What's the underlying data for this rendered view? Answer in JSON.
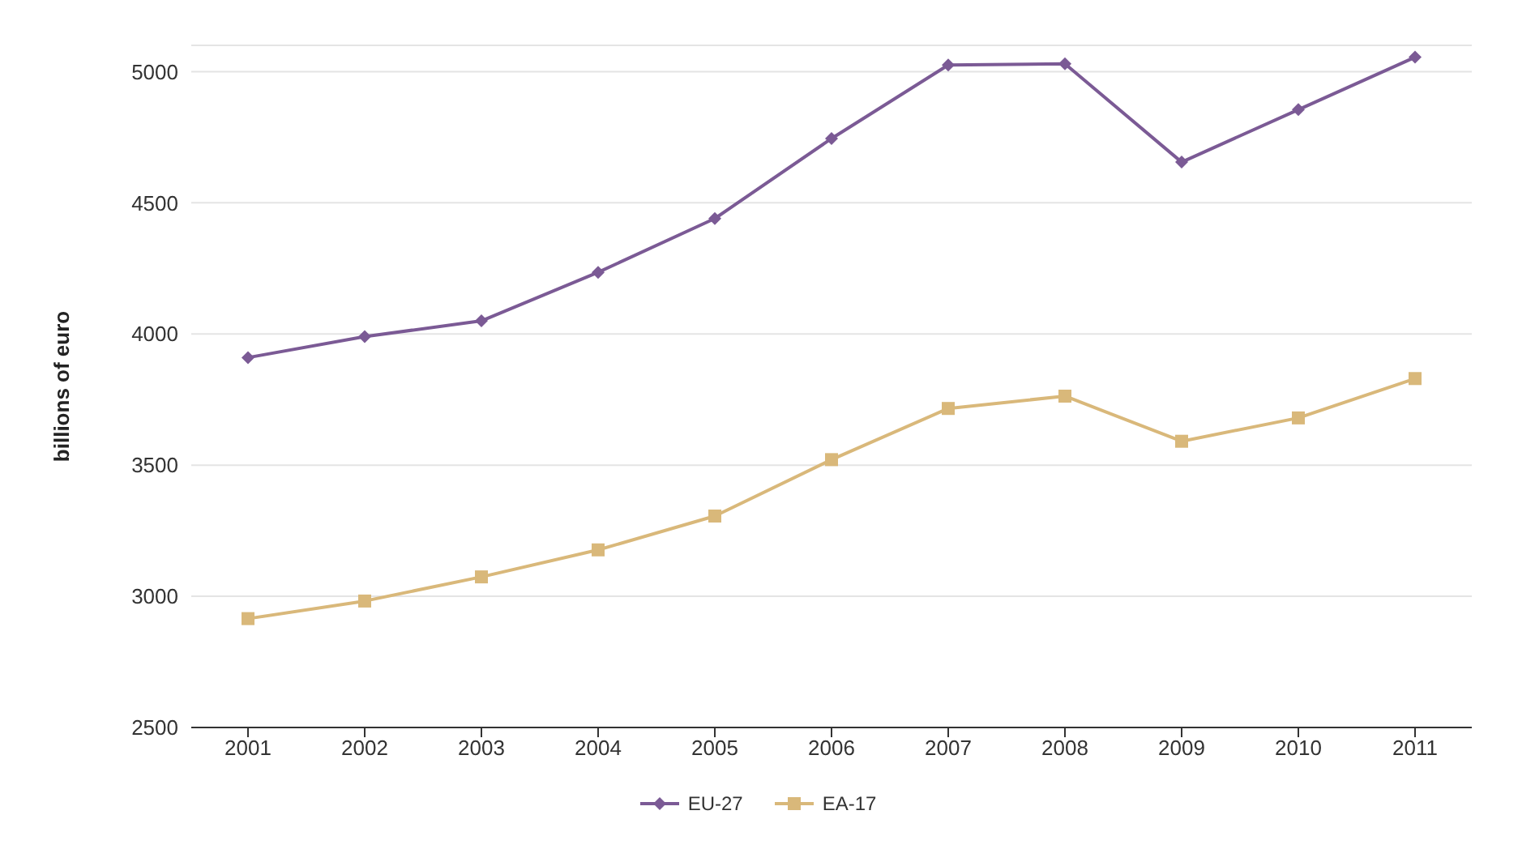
{
  "chart_data": {
    "type": "line",
    "ylabel": "billions of euro",
    "categories": [
      "2001",
      "2002",
      "2003",
      "2004",
      "2005",
      "2006",
      "2007",
      "2008",
      "2009",
      "2010",
      "2011"
    ],
    "series": [
      {
        "name": "EU-27",
        "color": "#7b5a95",
        "marker": "diamond",
        "values": [
          3910,
          3990,
          4050,
          4235,
          4440,
          4745,
          5025,
          5030,
          4655,
          4855,
          5055
        ]
      },
      {
        "name": "EA-17",
        "color": "#d9b87a",
        "marker": "square",
        "values": [
          2915,
          2982,
          3074,
          3177,
          3306,
          3521,
          3716,
          3763,
          3591,
          3680,
          3830
        ]
      }
    ],
    "ylim": [
      2500,
      5100
    ],
    "yticks": [
      2500,
      3000,
      3500,
      4000,
      4500,
      5000
    ],
    "grid": "y",
    "legend": "bottom"
  }
}
